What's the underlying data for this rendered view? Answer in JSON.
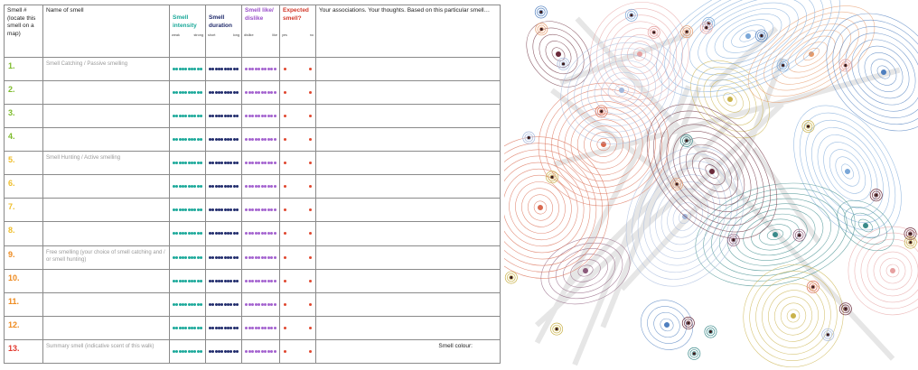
{
  "table": {
    "headers": {
      "number": "Smell # (locate this smell on a map)",
      "name": "Name of smell",
      "intensity": "Smell intensity",
      "intensity_low": "weak",
      "intensity_high": "strong",
      "duration": "Smell duration",
      "duration_low": "short",
      "duration_high": "long",
      "like": "Smell like/ dislike",
      "like_low": "dislike",
      "like_high": "like",
      "expected": "Expected smell?",
      "expected_low": "yes",
      "expected_high": "no",
      "thoughts": "Your associations. Your thoughts. Based on this particular smell…"
    },
    "rows": [
      {
        "num": "1.",
        "label": "Smell Catching / Passive smelling",
        "color": "green"
      },
      {
        "num": "2.",
        "label": "",
        "color": "green"
      },
      {
        "num": "3.",
        "label": "",
        "color": "green"
      },
      {
        "num": "4.",
        "label": "",
        "color": "green"
      },
      {
        "num": "5.",
        "label": "Smell Hunting / Active smelling",
        "color": "yellow"
      },
      {
        "num": "6.",
        "label": "",
        "color": "yellow"
      },
      {
        "num": "7.",
        "label": "",
        "color": "yellow"
      },
      {
        "num": "8.",
        "label": "",
        "color": "yellow"
      },
      {
        "num": "9.",
        "label": "Free smelling (your choice of smell catching and / or smell hunting)",
        "color": "orange"
      },
      {
        "num": "10.",
        "label": "",
        "color": "orange"
      },
      {
        "num": "11.",
        "label": "",
        "color": "orange"
      },
      {
        "num": "12.",
        "label": "",
        "color": "orange"
      },
      {
        "num": "13.",
        "label": "Summary smell (indicative scent of this walk)",
        "color": "red"
      }
    ],
    "smell_colour_label": "Smell colour:"
  },
  "map": {
    "palette": [
      "#4f7fbf",
      "#7aa7d8",
      "#e6a0a0",
      "#d9694f",
      "#c9b24a",
      "#6a2a3a",
      "#3a8a8a",
      "#a4b8dc",
      "#e59a6a",
      "#8b5a7a"
    ]
  }
}
